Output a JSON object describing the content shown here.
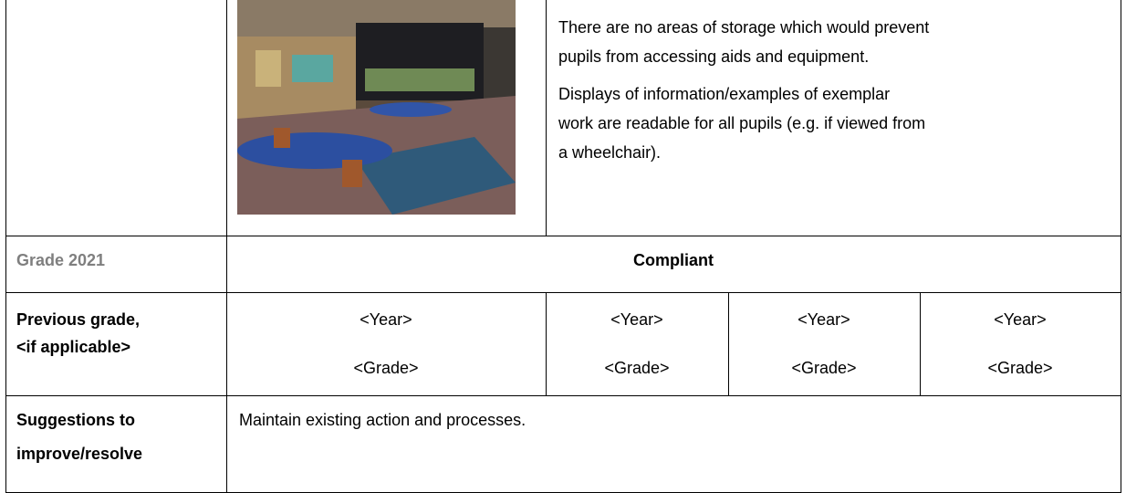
{
  "top_row": {
    "paragraphs": [
      [
        "There are no areas of storage which would prevent",
        "pupils from accessing aids and equipment."
      ],
      [
        "Displays of information/examples of exemplar",
        "work are readable for all pupils (e.g. if viewed from",
        "a wheelchair)."
      ]
    ]
  },
  "grade_row": {
    "label": "Grade 2021",
    "value": "Compliant"
  },
  "previous_grade_row": {
    "label_lines": [
      "Previous grade,",
      "<if applicable>"
    ],
    "cells": [
      {
        "year": "<Year>",
        "grade": "<Grade>"
      },
      {
        "year": "<Year>",
        "grade": "<Grade>"
      },
      {
        "year": "<Year>",
        "grade": "<Grade>"
      },
      {
        "year": "<Year>",
        "grade": "<Grade>"
      }
    ]
  },
  "suggestions_row": {
    "label_lines": [
      "Suggestions to",
      "improve/resolve"
    ],
    "text": "Maintain existing action and processes."
  }
}
